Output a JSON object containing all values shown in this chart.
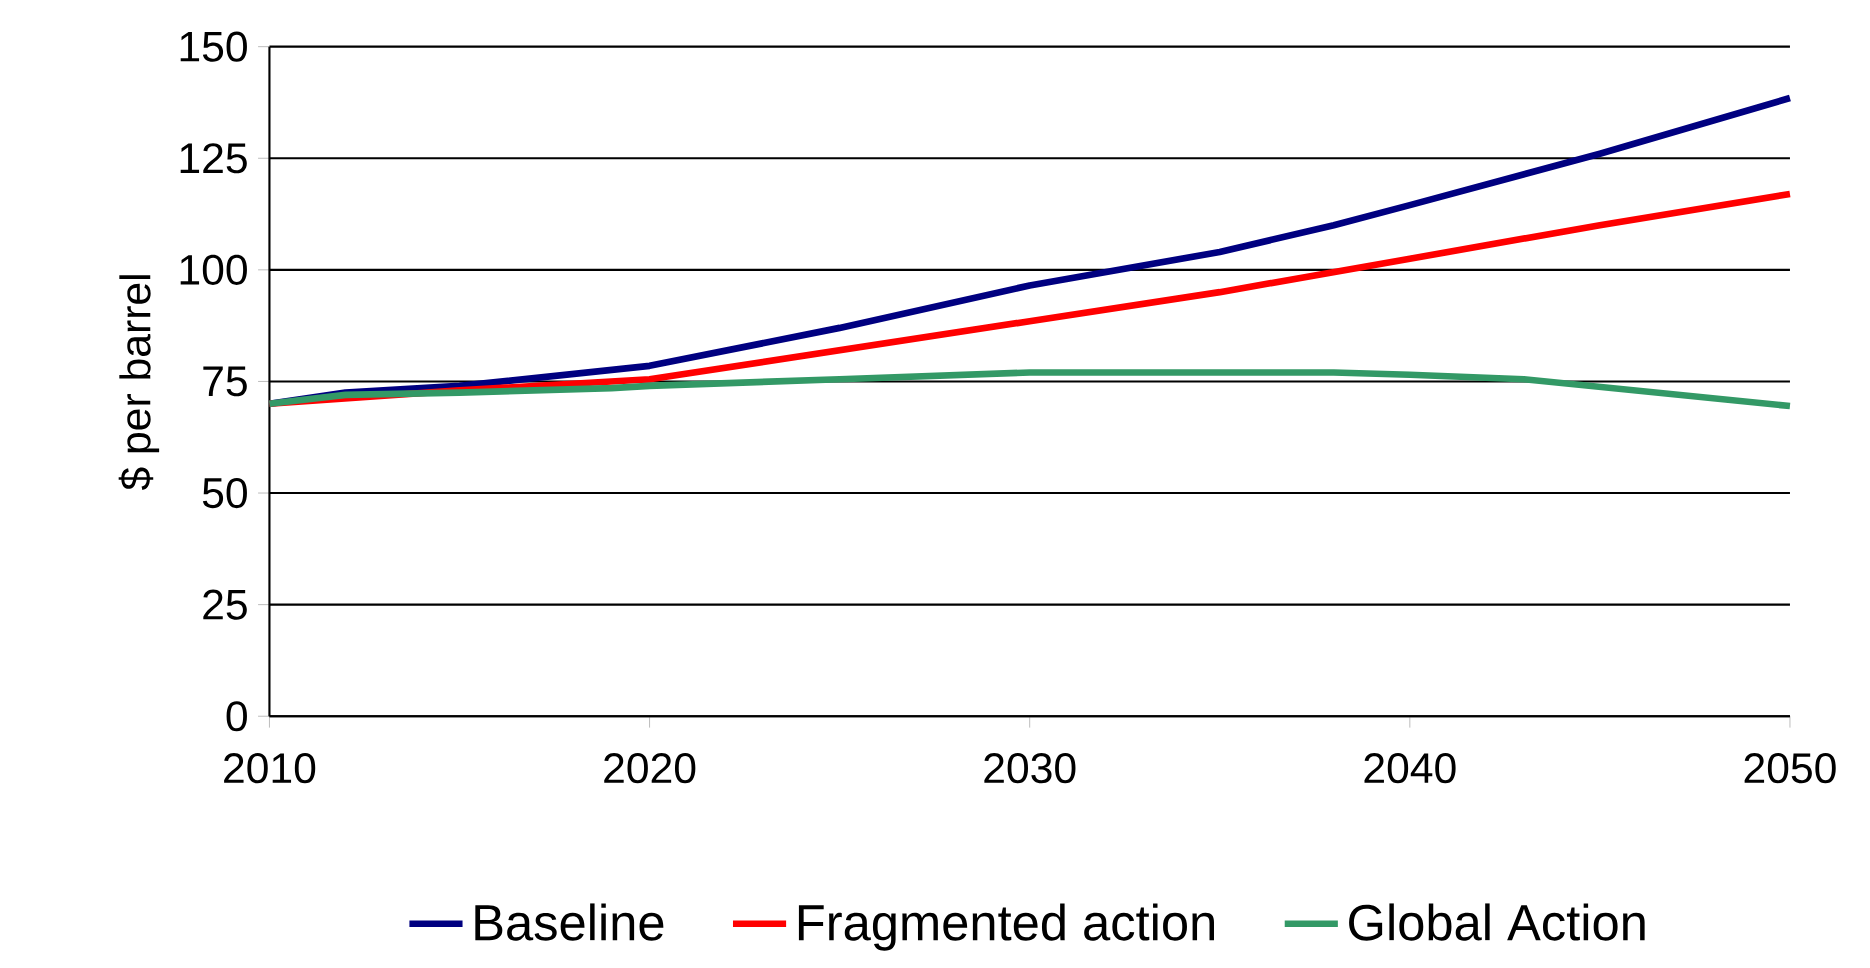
{
  "chart_data": {
    "type": "line",
    "ylabel": "$ per barrel",
    "xlim": [
      2010,
      2050
    ],
    "xticks": [
      2010,
      2020,
      2030,
      2040,
      2050
    ],
    "ylim": [
      0,
      150
    ],
    "yticks": [
      0,
      25,
      50,
      75,
      100,
      125,
      150
    ],
    "grid": "y",
    "legend": "bottom",
    "marker": "none",
    "line_style": "solid",
    "series": [
      {
        "name": "Baseline",
        "color": "#000080",
        "x": [
          2010,
          2012,
          2015,
          2020,
          2025,
          2030,
          2035,
          2038,
          2040,
          2045,
          2050
        ],
        "values": [
          70,
          72.5,
          74,
          78.5,
          87,
          96.5,
          104,
          110,
          114.5,
          126,
          138.5
        ]
      },
      {
        "name": "Fragmented action",
        "color": "#ff0000",
        "x": [
          2010,
          2015,
          2020,
          2025,
          2030,
          2035,
          2040,
          2045,
          2050
        ],
        "values": [
          70,
          73,
          75.5,
          82,
          88.5,
          95,
          102.5,
          110,
          117
        ]
      },
      {
        "name": "Global Action",
        "color": "#339966",
        "x": [
          2010,
          2012,
          2015,
          2019,
          2020,
          2025,
          2030,
          2038,
          2040,
          2043,
          2050
        ],
        "values": [
          70,
          72,
          72.5,
          73.5,
          74,
          75.5,
          77,
          77,
          76.5,
          75.5,
          69.5
        ]
      }
    ]
  }
}
